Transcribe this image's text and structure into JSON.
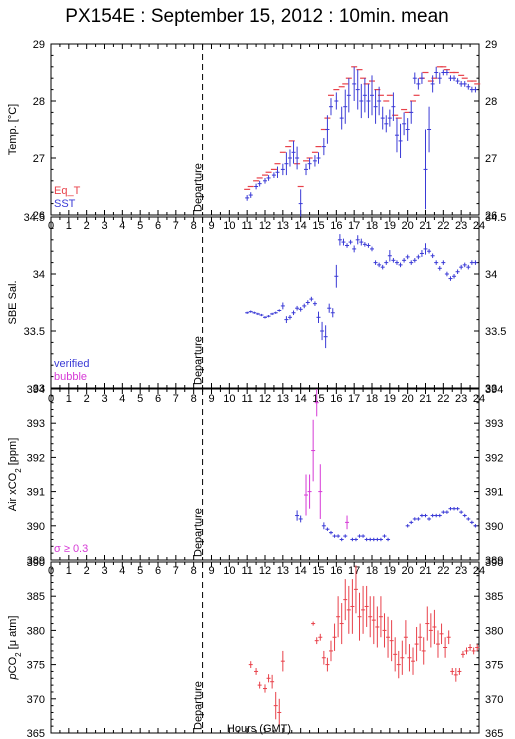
{
  "title": "PX154E : September 15, 2012 : 10min. mean",
  "xlabel": "Hours (GMT)",
  "x_ticks": [
    "0",
    "1",
    "2",
    "3",
    "4",
    "5",
    "6",
    "7",
    "8",
    "9",
    "10",
    "11",
    "12",
    "13",
    "14",
    "15",
    "16",
    "17",
    "18",
    "19",
    "20",
    "21",
    "22",
    "23",
    "24"
  ],
  "departure_hour": 8.5,
  "departure_label": "Departure",
  "colors": {
    "red": "#e8414a",
    "blue": "#3a3ad6",
    "magenta": "#d63ad6"
  },
  "chart_data": [
    {
      "type": "scatter",
      "ylabel": "Temp. [°C]",
      "ylim": [
        26,
        29
      ],
      "yticks": [
        "26",
        "27",
        "28",
        "29"
      ],
      "xlim": [
        0,
        24
      ],
      "legend": [
        "Eq_T",
        "SST"
      ],
      "series": [
        {
          "name": "Eq_T",
          "color": "red",
          "error_bars": false,
          "x": [
            11.0,
            11.2,
            11.5,
            11.7,
            12.0,
            12.2,
            12.5,
            12.7,
            13.0,
            13.3,
            13.5,
            13.8,
            14.0,
            14.3,
            14.5,
            14.8,
            15.0,
            15.3,
            15.5,
            15.7,
            16.0,
            16.3,
            16.5,
            16.7,
            17.0,
            17.3,
            17.5,
            17.7,
            18.0,
            18.3,
            18.5,
            18.8,
            19.0,
            19.3,
            19.5,
            19.8,
            20.0,
            20.3,
            20.5,
            20.8,
            21.0,
            21.3,
            21.5,
            21.8,
            22.0,
            22.2,
            22.5,
            22.7,
            23.0,
            23.2,
            23.5,
            23.7,
            23.9
          ],
          "y": [
            26.45,
            26.5,
            26.6,
            26.65,
            26.7,
            26.75,
            26.8,
            26.9,
            27.1,
            27.2,
            27.3,
            26.9,
            26.5,
            26.95,
            27.0,
            27.1,
            27.2,
            27.5,
            27.7,
            28.1,
            28.2,
            28.25,
            28.3,
            28.4,
            28.6,
            28.55,
            28.4,
            28.3,
            28.35,
            28.2,
            28.1,
            28.0,
            28.1,
            27.75,
            27.7,
            27.85,
            27.8,
            28.0,
            28.1,
            28.4,
            28.5,
            28.35,
            28.4,
            28.6,
            28.6,
            28.55,
            28.5,
            28.5,
            28.45,
            28.4,
            28.35,
            28.35,
            28.3
          ]
        },
        {
          "name": "SST",
          "color": "blue",
          "error_bars": true,
          "x": [
            11.0,
            11.2,
            11.5,
            11.7,
            12.0,
            12.2,
            12.5,
            12.7,
            13.0,
            13.2,
            13.4,
            13.6,
            13.8,
            14.0,
            14.3,
            14.5,
            14.8,
            15.0,
            15.3,
            15.5,
            15.7,
            16.0,
            16.3,
            16.5,
            16.7,
            17.0,
            17.2,
            17.4,
            17.6,
            17.8,
            18.0,
            18.2,
            18.4,
            18.6,
            18.8,
            19.0,
            19.2,
            19.4,
            19.6,
            19.8,
            20.0,
            20.2,
            20.4,
            20.6,
            20.8,
            21.0,
            21.2,
            21.4,
            21.6,
            21.8,
            22.0,
            22.2,
            22.4,
            22.6,
            22.8,
            23.0,
            23.2,
            23.4,
            23.6,
            23.8
          ],
          "y": [
            26.3,
            26.35,
            26.5,
            26.55,
            26.6,
            26.65,
            26.7,
            26.75,
            26.8,
            26.9,
            27.0,
            27.1,
            27.0,
            26.2,
            26.8,
            26.9,
            26.95,
            27.0,
            27.2,
            27.5,
            27.9,
            28.0,
            27.7,
            27.9,
            28.1,
            28.3,
            28.2,
            28.0,
            28.1,
            28.0,
            28.1,
            27.9,
            28.0,
            27.7,
            27.6,
            27.7,
            27.9,
            27.4,
            27.3,
            27.6,
            27.5,
            27.8,
            28.4,
            28.3,
            28.4,
            26.8,
            27.5,
            28.3,
            28.5,
            28.4,
            28.5,
            28.5,
            28.4,
            28.4,
            28.35,
            28.3,
            28.3,
            28.25,
            28.2,
            28.2
          ],
          "err": [
            0.05,
            0.05,
            0.05,
            0.05,
            0.05,
            0.05,
            0.05,
            0.1,
            0.1,
            0.2,
            0.15,
            0.2,
            0.2,
            0.25,
            0.1,
            0.1,
            0.1,
            0.1,
            0.15,
            0.25,
            0.15,
            0.15,
            0.2,
            0.3,
            0.3,
            0.3,
            0.35,
            0.3,
            0.3,
            0.3,
            0.35,
            0.3,
            0.25,
            0.2,
            0.15,
            0.15,
            0.25,
            0.3,
            0.3,
            0.2,
            0.2,
            0.2,
            0.1,
            0.1,
            0.1,
            0.7,
            0.4,
            0.15,
            0.1,
            0.1,
            0.05,
            0.05,
            0.05,
            0.05,
            0.05,
            0.05,
            0.05,
            0.05,
            0.05,
            0.05
          ]
        }
      ]
    },
    {
      "type": "scatter",
      "ylabel": "SBE Sal.",
      "ylim": [
        33,
        34.5
      ],
      "yticks": [
        "33",
        "33.5",
        "34",
        "34.5"
      ],
      "xlim": [
        0,
        24
      ],
      "legend": [
        "verified",
        "bubble"
      ],
      "series": [
        {
          "name": "verified",
          "color": "blue",
          "error_bars": true,
          "x": [
            11.0,
            11.2,
            11.4,
            11.6,
            11.8,
            12.0,
            12.2,
            12.4,
            12.6,
            12.8,
            13.0,
            13.2,
            13.4,
            13.6,
            13.8,
            14.0,
            14.2,
            14.4,
            14.6,
            14.8,
            15.0,
            15.2,
            15.4,
            15.6,
            15.8,
            16.0,
            16.2,
            16.4,
            16.6,
            16.8,
            17.0,
            17.2,
            17.4,
            17.6,
            17.8,
            18.0,
            18.2,
            18.4,
            18.6,
            18.8,
            19.0,
            19.2,
            19.4,
            19.6,
            19.8,
            20.0,
            20.2,
            20.4,
            20.6,
            20.8,
            21.0,
            21.2,
            21.4,
            21.6,
            21.8,
            22.0,
            22.2,
            22.4,
            22.6,
            22.8,
            23.0,
            23.2,
            23.4,
            23.6,
            23.8
          ],
          "y": [
            33.66,
            33.67,
            33.66,
            33.65,
            33.64,
            33.62,
            33.63,
            33.65,
            33.66,
            33.68,
            33.72,
            33.6,
            33.62,
            33.66,
            33.7,
            33.69,
            33.72,
            33.75,
            33.78,
            33.74,
            33.62,
            33.5,
            33.45,
            33.7,
            33.66,
            33.98,
            34.3,
            34.28,
            34.25,
            34.28,
            34.22,
            34.3,
            34.28,
            34.26,
            34.25,
            34.22,
            34.1,
            34.08,
            34.06,
            34.1,
            34.16,
            34.12,
            34.1,
            34.08,
            34.12,
            34.15,
            34.1,
            34.12,
            34.15,
            34.18,
            34.22,
            34.2,
            34.16,
            34.1,
            34.05,
            34.1,
            34.0,
            33.96,
            33.98,
            34.02,
            34.06,
            34.08,
            34.06,
            34.1,
            34.1
          ],
          "err": [
            0.01,
            0.01,
            0.01,
            0.01,
            0.01,
            0.01,
            0.01,
            0.01,
            0.01,
            0.01,
            0.03,
            0.03,
            0.02,
            0.02,
            0.02,
            0.02,
            0.02,
            0.02,
            0.02,
            0.02,
            0.05,
            0.08,
            0.1,
            0.04,
            0.04,
            0.1,
            0.05,
            0.03,
            0.02,
            0.02,
            0.03,
            0.04,
            0.03,
            0.02,
            0.02,
            0.02,
            0.02,
            0.02,
            0.02,
            0.02,
            0.05,
            0.02,
            0.02,
            0.02,
            0.02,
            0.02,
            0.02,
            0.02,
            0.02,
            0.03,
            0.05,
            0.02,
            0.02,
            0.02,
            0.02,
            0.02,
            0.02,
            0.02,
            0.02,
            0.02,
            0.02,
            0.02,
            0.02,
            0.02,
            0.02
          ]
        },
        {
          "name": "bubble",
          "color": "magenta",
          "error_bars": false,
          "x": [],
          "y": []
        }
      ]
    },
    {
      "type": "scatter",
      "ylabel": "Air xCO2 [ppm]",
      "ylim": [
        389,
        394
      ],
      "yticks": [
        "389",
        "390",
        "391",
        "392",
        "393",
        "394"
      ],
      "xlim": [
        0,
        24
      ],
      "legend": [
        "σ ≥ 0.3"
      ],
      "series": [
        {
          "name": "σ ≥ 0.3",
          "color": "magenta",
          "error_bars": true,
          "x": [
            14.3,
            14.5,
            14.7,
            14.9,
            15.1,
            16.6
          ],
          "y": [
            390.9,
            391.0,
            392.2,
            393.6,
            391.0,
            390.1
          ],
          "err": [
            0.6,
            0.5,
            0.9,
            0.4,
            0.8,
            0.2
          ]
        },
        {
          "name": "",
          "color": "blue",
          "error_bars": true,
          "x": [
            13.8,
            14.0,
            15.3,
            15.5,
            15.7,
            15.9,
            16.1,
            16.3,
            16.5,
            16.9,
            17.1,
            17.3,
            17.5,
            17.7,
            17.9,
            18.1,
            18.3,
            18.5,
            18.7,
            18.9,
            20.0,
            20.2,
            20.4,
            20.6,
            20.8,
            21.0,
            21.2,
            21.4,
            21.6,
            21.8,
            22.0,
            22.2,
            22.4,
            22.6,
            22.8,
            23.0,
            23.2,
            23.4,
            23.6,
            23.8
          ],
          "y": [
            390.3,
            390.2,
            390.0,
            389.9,
            389.8,
            389.7,
            389.7,
            389.6,
            389.7,
            389.6,
            389.6,
            389.7,
            389.7,
            389.6,
            389.6,
            389.6,
            389.6,
            389.6,
            389.7,
            389.6,
            390.0,
            390.1,
            390.2,
            390.2,
            390.3,
            390.3,
            390.2,
            390.3,
            390.3,
            390.3,
            390.4,
            390.4,
            390.5,
            390.5,
            390.5,
            390.4,
            390.3,
            390.2,
            390.1,
            390.0
          ],
          "err": [
            0.15,
            0.1,
            0.1,
            0.05,
            0.05,
            0.05,
            0.05,
            0.05,
            0.05,
            0.05,
            0.05,
            0.05,
            0.05,
            0.05,
            0.05,
            0.05,
            0.05,
            0.05,
            0.05,
            0.05,
            0.05,
            0.05,
            0.05,
            0.05,
            0.05,
            0.05,
            0.05,
            0.05,
            0.05,
            0.05,
            0.05,
            0.05,
            0.05,
            0.05,
            0.05,
            0.05,
            0.05,
            0.05,
            0.05,
            0.05
          ]
        }
      ]
    },
    {
      "type": "scatter",
      "ylabel": "pCO2 [μ atm]",
      "ylim": [
        365,
        390
      ],
      "yticks": [
        "365",
        "370",
        "375",
        "380",
        "385",
        "390"
      ],
      "xlim": [
        0,
        24
      ],
      "legend": [],
      "series": [
        {
          "name": "",
          "color": "red",
          "error_bars": true,
          "x": [
            11.2,
            11.5,
            11.7,
            12.0,
            12.2,
            12.4,
            12.6,
            12.8,
            13.0,
            14.7,
            14.9,
            15.1,
            15.3,
            15.5,
            15.7,
            15.9,
            16.1,
            16.3,
            16.5,
            16.7,
            16.9,
            17.1,
            17.3,
            17.5,
            17.7,
            17.9,
            18.1,
            18.3,
            18.5,
            18.7,
            18.9,
            19.1,
            19.3,
            19.5,
            19.7,
            19.9,
            20.1,
            20.3,
            20.5,
            20.7,
            20.9,
            21.1,
            21.3,
            21.5,
            21.7,
            21.9,
            22.1,
            22.3,
            22.5,
            22.7,
            22.9,
            23.1,
            23.3,
            23.5,
            23.7,
            23.9
          ],
          "y": [
            375.0,
            374.0,
            372.0,
            371.5,
            373.0,
            372.5,
            369.0,
            368.0,
            375.5,
            381.0,
            378.5,
            379.0,
            376.0,
            375.0,
            377.0,
            379.0,
            382.0,
            381.0,
            384.5,
            383.0,
            383.5,
            386.0,
            382.0,
            383.0,
            383.5,
            382.0,
            381.5,
            380.5,
            382.0,
            380.0,
            379.0,
            378.5,
            376.5,
            375.0,
            376.0,
            379.0,
            376.0,
            375.5,
            378.0,
            379.0,
            377.0,
            381.0,
            380.0,
            380.5,
            378.0,
            379.5,
            377.5,
            379.0,
            374.0,
            373.5,
            374.0,
            376.5,
            377.0,
            377.5,
            377.0,
            377.5
          ],
          "err": [
            0.5,
            0.5,
            0.5,
            0.6,
            0.6,
            1.0,
            2.0,
            2.0,
            1.5,
            0.3,
            0.5,
            0.5,
            1.0,
            1.0,
            1.5,
            2.0,
            3.0,
            3.0,
            3.0,
            3.5,
            4.0,
            3.5,
            3.5,
            3.5,
            3.0,
            3.0,
            3.5,
            3.0,
            3.0,
            2.5,
            3.0,
            3.0,
            2.5,
            2.0,
            2.5,
            2.5,
            2.0,
            2.0,
            2.5,
            2.0,
            2.0,
            2.5,
            2.5,
            2.5,
            2.0,
            1.5,
            1.5,
            1.0,
            0.5,
            1.0,
            0.5,
            0.5,
            0.5,
            0.5,
            0.5,
            0.5
          ]
        }
      ]
    }
  ]
}
